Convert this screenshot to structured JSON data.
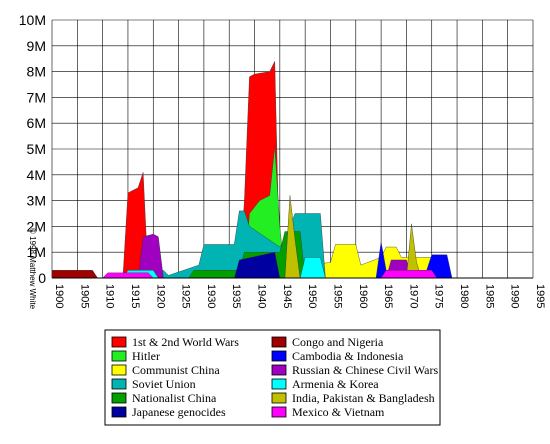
{
  "chart_data": {
    "type": "area",
    "copyright": "© 1998 Matthew White",
    "xlim": [
      1900,
      1995
    ],
    "xticks": [
      1900,
      1905,
      1910,
      1915,
      1920,
      1925,
      1930,
      1935,
      1940,
      1945,
      1950,
      1955,
      1960,
      1965,
      1970,
      1975,
      1980,
      1985,
      1990,
      1995
    ],
    "ylim": [
      0,
      10
    ],
    "yticks": [
      0,
      {
        "value": 1,
        "label": "1M"
      },
      {
        "value": 2,
        "label": "2M"
      },
      {
        "value": 3,
        "label": "3M"
      },
      {
        "value": 4,
        "label": "4M"
      },
      {
        "value": 5,
        "label": "5M"
      },
      {
        "value": 6,
        "label": "6M"
      },
      {
        "value": 7,
        "label": "7M"
      },
      {
        "value": 8,
        "label": "8M"
      },
      {
        "value": 9,
        "label": "9M"
      },
      {
        "value": 10,
        "label": "10M"
      }
    ],
    "grid": true,
    "series": [
      {
        "name": "1st & 2nd World Wars",
        "color": "#ff0000",
        "x": [
          1914,
          1915,
          1917,
          1918,
          1919,
          1937,
          1938,
          1939,
          1940,
          1943,
          1944,
          1945
        ],
        "values": [
          0,
          3.3,
          3.5,
          4.1,
          0,
          0,
          3,
          7.8,
          7.9,
          8.0,
          8.4,
          0
        ]
      },
      {
        "name": "Hitler",
        "color": "#22ee22",
        "x": [
          1938,
          1939,
          1941,
          1943,
          1944,
          1945,
          1946
        ],
        "values": [
          0,
          2.5,
          3.0,
          3.2,
          5.1,
          2.0,
          0
        ]
      },
      {
        "name": "Communist China",
        "color": "#ffff00",
        "x": [
          1945,
          1946,
          1947,
          1949,
          1950,
          1955,
          1956,
          1960,
          1961,
          1965,
          1966,
          1968,
          1969,
          1975,
          1976
        ],
        "values": [
          0,
          1.4,
          1.8,
          1.8,
          0.5,
          0.6,
          1.3,
          1.3,
          0.5,
          0.8,
          1.2,
          1.2,
          0.8,
          0.8,
          0
        ]
      },
      {
        "name": "Soviet Union",
        "color": "#00b4b4",
        "x": [
          1918,
          1920,
          1922,
          1923,
          1929,
          1930,
          1936,
          1937,
          1938,
          1939,
          1945,
          1946,
          1948,
          1953,
          1954
        ],
        "values": [
          0.2,
          0.3,
          0.3,
          0.1,
          0.5,
          1.3,
          1.3,
          2.6,
          2.6,
          2.0,
          1.2,
          1.5,
          2.5,
          2.5,
          0
        ]
      },
      {
        "name": "Nationalist China",
        "color": "#00a000",
        "x": [
          1927,
          1928,
          1937,
          1938,
          1945,
          1946,
          1949,
          1950
        ],
        "values": [
          0,
          0.3,
          0.3,
          1.0,
          1.0,
          1.8,
          1.8,
          0
        ]
      },
      {
        "name": "Japanese genocides",
        "color": "#0000a0",
        "x": [
          1936,
          1937,
          1944,
          1945
        ],
        "values": [
          0,
          0.7,
          1.0,
          0
        ]
      },
      {
        "name": "Congo and Nigeria",
        "color": "#a00000",
        "x": [
          1900,
          1908,
          1909,
          1966,
          1967,
          1970,
          1971
        ],
        "values": [
          0.3,
          0.3,
          0,
          0,
          0.6,
          0.6,
          0
        ]
      },
      {
        "name": "Cambodia & Indonesia",
        "color": "#0000ff",
        "x": [
          1964,
          1965,
          1966,
          1974,
          1975,
          1978,
          1979
        ],
        "values": [
          0,
          1.4,
          0.3,
          0.3,
          0.9,
          0.9,
          0
        ]
      },
      {
        "name": "Russian & Chinese Civil Wars",
        "color": "#a000c0",
        "x": [
          1917,
          1918,
          1920,
          1921,
          1922,
          1966,
          1967,
          1970,
          1971
        ],
        "values": [
          0,
          1.6,
          1.7,
          1.6,
          0,
          0,
          0.7,
          0.7,
          0
        ]
      },
      {
        "name": "Armenia & Korea",
        "color": "#00ffff",
        "x": [
          1914,
          1915,
          1920,
          1921,
          1949,
          1950,
          1953,
          1954
        ],
        "values": [
          0,
          0.3,
          0.3,
          0,
          0,
          0.8,
          0.8,
          0
        ]
      },
      {
        "name": "India, Pakistan & Bangladesh",
        "color": "#c0c000",
        "x": [
          1946,
          1947,
          1948,
          1949,
          1970,
          1971,
          1972,
          1973
        ],
        "values": [
          0,
          3.2,
          1.5,
          0,
          0,
          2.1,
          0.6,
          0
        ]
      },
      {
        "name": "Mexico & Vietnam",
        "color": "#ff00ff",
        "x": [
          1910,
          1911,
          1919,
          1920,
          1965,
          1966,
          1975,
          1976
        ],
        "values": [
          0,
          0.2,
          0.2,
          0,
          0,
          0.3,
          0.3,
          0
        ]
      }
    ]
  }
}
